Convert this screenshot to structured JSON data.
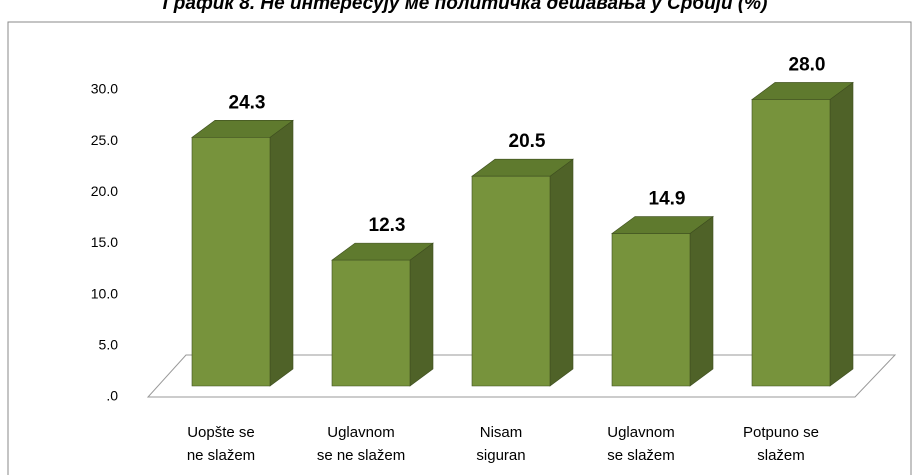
{
  "chart_data": {
    "type": "bar3d",
    "title": "График 8. Не интересују ме политичка дешавања у Србији (%)",
    "categories": [
      [
        "Uopšte se",
        "ne slažem"
      ],
      [
        "Uglavnom",
        "se ne slažem"
      ],
      [
        "Nisam",
        "siguran"
      ],
      [
        "Uglavnom",
        "se slažem"
      ],
      [
        "Potpuno se",
        "slažem"
      ]
    ],
    "values": [
      24.3,
      12.3,
      20.5,
      14.9,
      28.0
    ],
    "value_labels": [
      "24.3",
      "12.3",
      "20.5",
      "14.9",
      "28.0"
    ],
    "color": "#77933c",
    "ylim": [
      0,
      30
    ],
    "yticks": [
      {
        "value": 0,
        "label": ".0"
      },
      {
        "value": 5,
        "label": "5.0"
      },
      {
        "value": 10,
        "label": "10.0"
      },
      {
        "value": 15,
        "label": "15.0"
      },
      {
        "value": 20,
        "label": "20.0"
      },
      {
        "value": 25,
        "label": "25.0"
      },
      {
        "value": 30,
        "label": "30.0"
      }
    ],
    "grid": false
  }
}
